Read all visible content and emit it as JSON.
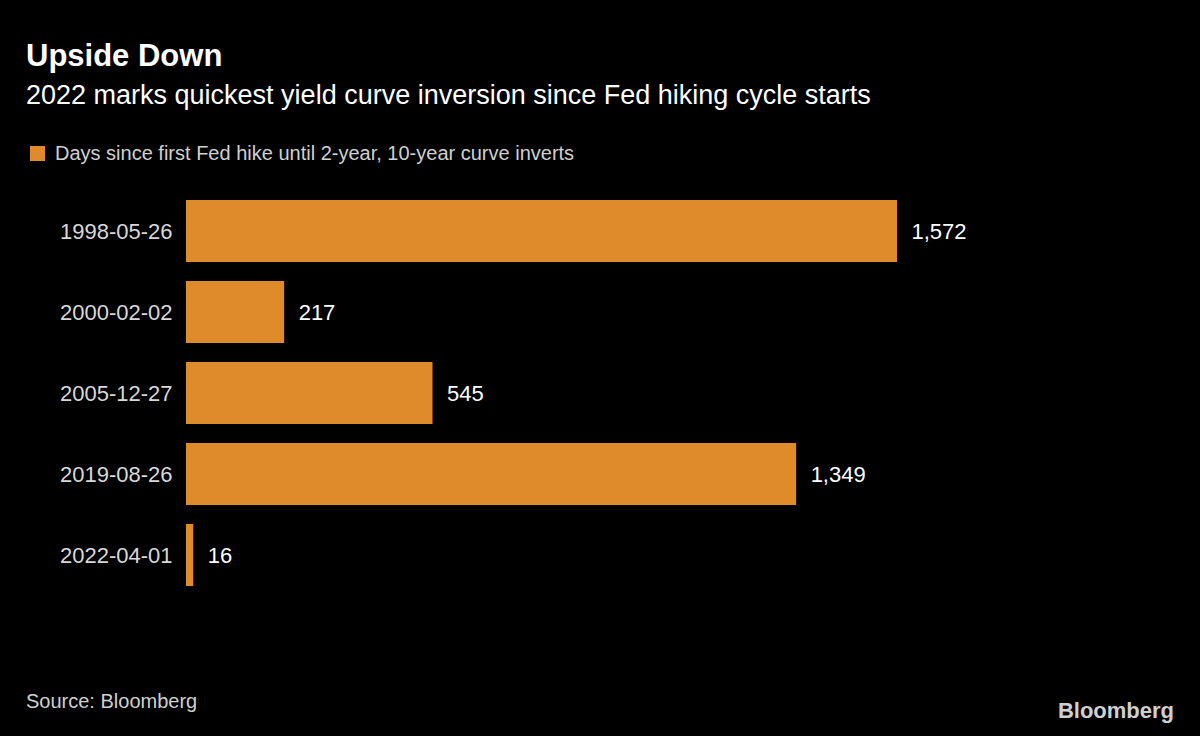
{
  "chart_data": {
    "type": "bar",
    "orientation": "horizontal",
    "title": "Upside Down",
    "subtitle": "2022 marks quickest yield curve inversion since Fed hiking cycle starts",
    "source": "Source: Bloomberg",
    "credit": "Bloomberg",
    "categories": [
      "1998-05-26",
      "2000-02-02",
      "2005-12-27",
      "2019-08-26",
      "2022-04-01"
    ],
    "series": [
      {
        "name": "Days since first Fed hike until 2-year, 10-year curve inverts",
        "color": "#e08b2b",
        "values": [
          1572,
          217,
          545,
          1349,
          16
        ],
        "value_labels": [
          "1,572",
          "217",
          "545",
          "1,349",
          "16"
        ]
      }
    ],
    "xlim": [
      0,
      1572
    ],
    "data_labels": true,
    "tick_labels": "y",
    "legend": "top-left",
    "grid": false
  }
}
